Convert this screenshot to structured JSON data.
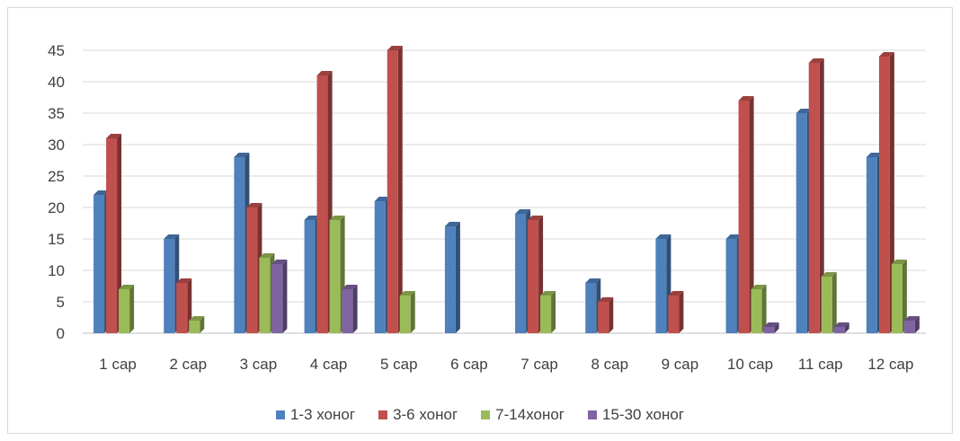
{
  "chart_data": {
    "type": "bar",
    "title": "",
    "xlabel": "",
    "ylabel": "",
    "ylim": [
      0,
      45
    ],
    "yticks": [
      0,
      5,
      10,
      15,
      20,
      25,
      30,
      35,
      40,
      45
    ],
    "grid": true,
    "legend_position": "bottom",
    "categories": [
      "1 сар",
      "2 сар",
      "3 сар",
      "4 сар",
      "5 сар",
      "6 сар",
      "7 сар",
      "8 сар",
      "9 сар",
      "10 сар",
      "11 сар",
      "12 сар"
    ],
    "series": [
      {
        "name": "1-3 хоног",
        "color": "#4f81bd",
        "values": [
          22,
          15,
          28,
          18,
          21,
          17,
          19,
          8,
          15,
          15,
          35,
          28
        ]
      },
      {
        "name": "3-6 хоног",
        "color": "#c0504d",
        "values": [
          31,
          8,
          20,
          41,
          45,
          0,
          18,
          5,
          6,
          37,
          43,
          44
        ]
      },
      {
        "name": "7-14хоног",
        "color": "#9bbb59",
        "values": [
          7,
          2,
          12,
          18,
          6,
          0,
          6,
          0,
          0,
          7,
          9,
          11
        ]
      },
      {
        "name": "15-30 хоног",
        "color": "#8064a2",
        "values": [
          0,
          0,
          11,
          7,
          0,
          0,
          0,
          0,
          0,
          1,
          1,
          2
        ]
      }
    ]
  }
}
